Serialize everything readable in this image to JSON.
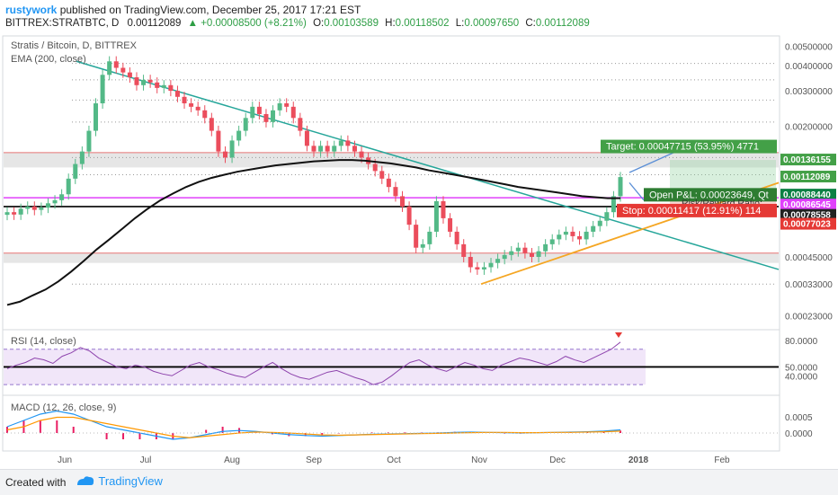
{
  "header": {
    "author": "rustywork",
    "published_text": "published on TradingView.com, December 25, 2017 17:21 EST",
    "symbol_line": "BITTREX:STRATBTC, D",
    "last": "0.00112089",
    "change": "+0.00008500 (+8.21%)",
    "o_label": "O:",
    "o_value": "0.00103589",
    "h_label": "H:",
    "h_value": "0.00118502",
    "l_label": "L:",
    "l_value": "0.00097650",
    "c_label": "C:",
    "c_value": "0.00112089"
  },
  "footer": {
    "created_with": "Created with",
    "brand": "TradingView"
  },
  "colors": {
    "up": "#53b987",
    "down": "#eb4d5c",
    "ema": "#111111",
    "ma_gray": "#888888",
    "trend_green": "#26a69a",
    "trend_orange": "#f5a623",
    "magenta": "#e040fb",
    "rsi": "#8e44ad",
    "macd": "#2196f3",
    "signal": "#ff9800",
    "zone": "#c8c8c8",
    "target_green": "#43a047",
    "stop_red": "#e53935"
  },
  "chart_data": [
    {
      "type": "candlestick",
      "title": "Stratis / Bitcoin, D, BITTREX",
      "indicator": "EMA (200, close)",
      "x_ticks": [
        "Jun",
        "Jul",
        "Aug",
        "Sep",
        "Oct",
        "Nov",
        "Dec",
        "2018",
        "Feb"
      ],
      "y_scale": "log",
      "ylim": [
        0.0002,
        0.0055
      ],
      "y_ticks": [
        "0.00500000",
        "0.00400000",
        "0.00300000",
        "0.00200000",
        "0.00045000",
        "0.00033000",
        "0.00023000"
      ],
      "series": {
        "close": [
          0.00075,
          0.00073,
          0.00078,
          0.0008,
          0.00077,
          0.00079,
          0.00083,
          0.00086,
          0.00092,
          0.0011,
          0.0013,
          0.0015,
          0.0019,
          0.0026,
          0.0036,
          0.0042,
          0.0039,
          0.0037,
          0.0035,
          0.0032,
          0.0034,
          0.0033,
          0.0031,
          0.0032,
          0.003,
          0.0028,
          0.0026,
          0.0025,
          0.0024,
          0.0022,
          0.0019,
          0.0015,
          0.0014,
          0.0017,
          0.0019,
          0.0022,
          0.0025,
          0.0023,
          0.0021,
          0.0024,
          0.0026,
          0.0025,
          0.0022,
          0.0019,
          0.0016,
          0.0015,
          0.0016,
          0.0015,
          0.0016,
          0.0017,
          0.0016,
          0.0015,
          0.0014,
          0.0013,
          0.0012,
          0.0011,
          0.001,
          0.0009,
          0.0008,
          0.00065,
          0.0005,
          0.00052,
          0.0006,
          0.00085,
          0.0007,
          0.0006,
          0.00052,
          0.00045,
          0.0004,
          0.00039,
          0.0004,
          0.00042,
          0.00044,
          0.00046,
          0.00048,
          0.0005,
          0.00047,
          0.00045,
          0.00048,
          0.00052,
          0.00055,
          0.00058,
          0.0006,
          0.00057,
          0.00055,
          0.0006,
          0.00064,
          0.00068,
          0.00075,
          0.0009,
          0.00112
        ],
        "ema200": [
          0.00026,
          0.00027,
          0.00029,
          0.00031,
          0.00034,
          0.00038,
          0.00043,
          0.00049,
          0.00055,
          0.00062,
          0.0007,
          0.00078,
          0.00086,
          0.00093,
          0.001,
          0.00106,
          0.00111,
          0.00115,
          0.00119,
          0.00122,
          0.00125,
          0.00128,
          0.0013,
          0.00132,
          0.00134,
          0.00135,
          0.00136,
          0.00136,
          0.00135,
          0.00133,
          0.00131,
          0.00128,
          0.00125,
          0.00121,
          0.00118,
          0.00115,
          0.00112,
          0.00109,
          0.00106,
          0.00103,
          0.001,
          0.00098,
          0.00096,
          0.00094,
          0.00092,
          0.0009,
          0.00089,
          0.00088,
          0.00088
        ]
      },
      "levels": {
        "target": "0.00136155",
        "last": "0.00112089",
        "entry": "0.00088440",
        "magenta": "0.00086545",
        "ema": "0.00078558",
        "stop": "0.00077023"
      },
      "annotations": {
        "target": "Target: 0.00047715 (53.95%) 4771",
        "open_pnl": "Open P&L: 0.00023649, Qt",
        "risk_reward": "Risk/Reward Ratio:",
        "stop": "Stop: 0.00011417 (12.91%) 114"
      }
    },
    {
      "type": "line",
      "title": "RSI (14, close)",
      "ylim": [
        20,
        90
      ],
      "y_ticks": [
        "80.0000",
        "50.0000",
        "40.0000"
      ],
      "series": [
        {
          "values": [
            48,
            52,
            55,
            60,
            58,
            54,
            62,
            66,
            72,
            68,
            60,
            55,
            50,
            48,
            52,
            50,
            45,
            42,
            40,
            46,
            52,
            55,
            50,
            47,
            43,
            40,
            38,
            44,
            50,
            55,
            48,
            42,
            38,
            36,
            40,
            44,
            46,
            42,
            38,
            35,
            30,
            33,
            40,
            48,
            55,
            58,
            52,
            48,
            45,
            50,
            55,
            52,
            48,
            46,
            52,
            56,
            60,
            58,
            55,
            52,
            56,
            62,
            58,
            55,
            60,
            65,
            70,
            78
          ]
        }
      ]
    },
    {
      "type": "line",
      "title": "MACD (12, 26, close, 9)",
      "y_ticks": [
        "0.0005",
        "0.0000"
      ],
      "series": [
        {
          "values": [
            0.0002,
            0.0004,
            0.0006,
            0.0007,
            0.0006,
            0.0004,
            0.0002,
            0.0001,
            0.0,
            -0.0001,
            -0.0002,
            -0.00015,
            -5e-05,
            5e-05,
            8e-05,
            5e-05,
            0.0,
            -5e-05,
            -8e-05,
            -0.0001,
            -8e-05,
            -6e-05,
            -4e-05,
            -3e-05,
            -2e-05,
            -1e-05,
            0.0,
            2e-05,
            3e-05,
            2e-05,
            1e-05,
            0.0,
            1e-05,
            2e-05,
            3e-05,
            4e-05,
            6e-05,
            0.0001
          ]
        },
        {
          "values": [
            0.0001,
            0.0002,
            0.0004,
            0.0005,
            0.0005,
            0.0004,
            0.0003,
            0.0002,
            0.0001,
            0.0,
            -0.0001,
            -0.00015,
            -0.0001,
            -5e-05,
            0.0,
            3e-05,
            2e-05,
            0.0,
            -3e-05,
            -6e-05,
            -7e-05,
            -6e-05,
            -5e-05,
            -4e-05,
            -3e-05,
            -2e-05,
            -1e-05,
            0.0,
            1e-05,
            2e-05,
            2e-05,
            1e-05,
            1e-05,
            2e-05,
            2e-05,
            3e-05,
            4e-05,
            6e-05
          ]
        }
      ]
    }
  ]
}
